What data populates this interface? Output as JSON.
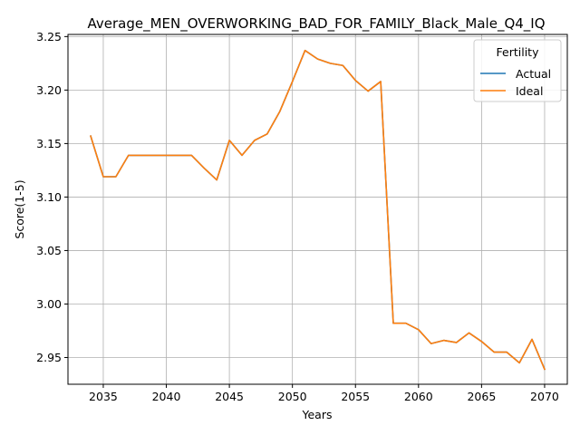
{
  "chart_data": {
    "type": "line",
    "title": "Average_MEN_OVERWORKING_BAD_FOR_FAMILY_Black_Male_Q4_IQ",
    "xlabel": "Years",
    "ylabel": "Score(1-5)",
    "xlim": [
      2032.2,
      2071.8
    ],
    "ylim": [
      2.925,
      3.252
    ],
    "xticks": [
      2035,
      2040,
      2045,
      2050,
      2055,
      2060,
      2065,
      2070
    ],
    "yticks": [
      2.95,
      3.0,
      3.05,
      3.1,
      3.15,
      3.2,
      3.25
    ],
    "xtick_labels": [
      "2035",
      "2040",
      "2045",
      "2050",
      "2055",
      "2060",
      "2065",
      "2070"
    ],
    "ytick_labels": [
      "2.95",
      "3.00",
      "3.05",
      "3.10",
      "3.15",
      "3.20",
      "3.25"
    ],
    "grid": true,
    "legend": {
      "title": "Fertility",
      "placement": "top-right",
      "entries": [
        "Actual",
        "Ideal"
      ]
    },
    "x": [
      2034,
      2035,
      2036,
      2037,
      2038,
      2039,
      2040,
      2041,
      2042,
      2043,
      2044,
      2045,
      2046,
      2047,
      2048,
      2049,
      2050,
      2051,
      2052,
      2053,
      2054,
      2055,
      2056,
      2057,
      2058,
      2059,
      2060,
      2061,
      2062,
      2063,
      2064,
      2065,
      2066,
      2067,
      2068,
      2069,
      2070
    ],
    "series": [
      {
        "name": "Actual",
        "color": "#1f77b4",
        "values": [
          3.157,
          3.119,
          3.119,
          3.139,
          3.139,
          3.139,
          3.139,
          3.139,
          3.139,
          3.127,
          3.116,
          3.153,
          3.139,
          3.153,
          3.159,
          3.18,
          3.208,
          3.237,
          3.229,
          3.225,
          3.223,
          3.209,
          3.199,
          3.208,
          2.982,
          2.982,
          2.976,
          2.963,
          2.966,
          2.964,
          2.973,
          2.965,
          2.955,
          2.955,
          2.945,
          2.967,
          2.939
        ]
      },
      {
        "name": "Ideal",
        "color": "#ff7f0e",
        "values": [
          3.157,
          3.119,
          3.119,
          3.139,
          3.139,
          3.139,
          3.139,
          3.139,
          3.139,
          3.127,
          3.116,
          3.153,
          3.139,
          3.153,
          3.159,
          3.18,
          3.208,
          3.237,
          3.229,
          3.225,
          3.223,
          3.209,
          3.199,
          3.208,
          2.982,
          2.982,
          2.976,
          2.963,
          2.966,
          2.964,
          2.973,
          2.965,
          2.955,
          2.955,
          2.945,
          2.967,
          2.939
        ]
      }
    ]
  }
}
